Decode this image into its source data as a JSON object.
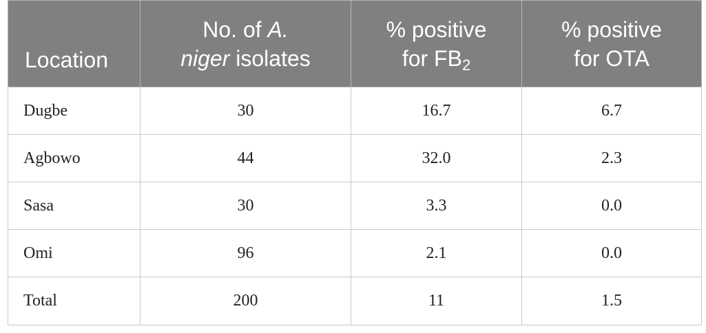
{
  "header": {
    "location": "Location",
    "isolates_pre": "No. of ",
    "isolates_species_a": "A.",
    "isolates_species_b": "niger",
    "isolates_post": " isolates",
    "fb2_line1": "% positive",
    "fb2_line2": "for FB",
    "fb2_sub": "2",
    "ota_line1": "% positive",
    "ota_line2": "for OTA"
  },
  "rows": [
    {
      "location": "Dugbe",
      "isolates": "30",
      "fb2": "16.7",
      "ota": "6.7"
    },
    {
      "location": "Agbowo",
      "isolates": "44",
      "fb2": "32.0",
      "ota": "2.3"
    },
    {
      "location": "Sasa",
      "isolates": "30",
      "fb2": "3.3",
      "ota": "0.0"
    },
    {
      "location": "Omi",
      "isolates": "96",
      "fb2": "2.1",
      "ota": "0.0"
    },
    {
      "location": "Total",
      "isolates": "200",
      "fb2": "11",
      "ota": "1.5"
    }
  ],
  "colors": {
    "header_bg": "#808080",
    "header_text": "#ffffff",
    "border": "#c8c8c8"
  }
}
